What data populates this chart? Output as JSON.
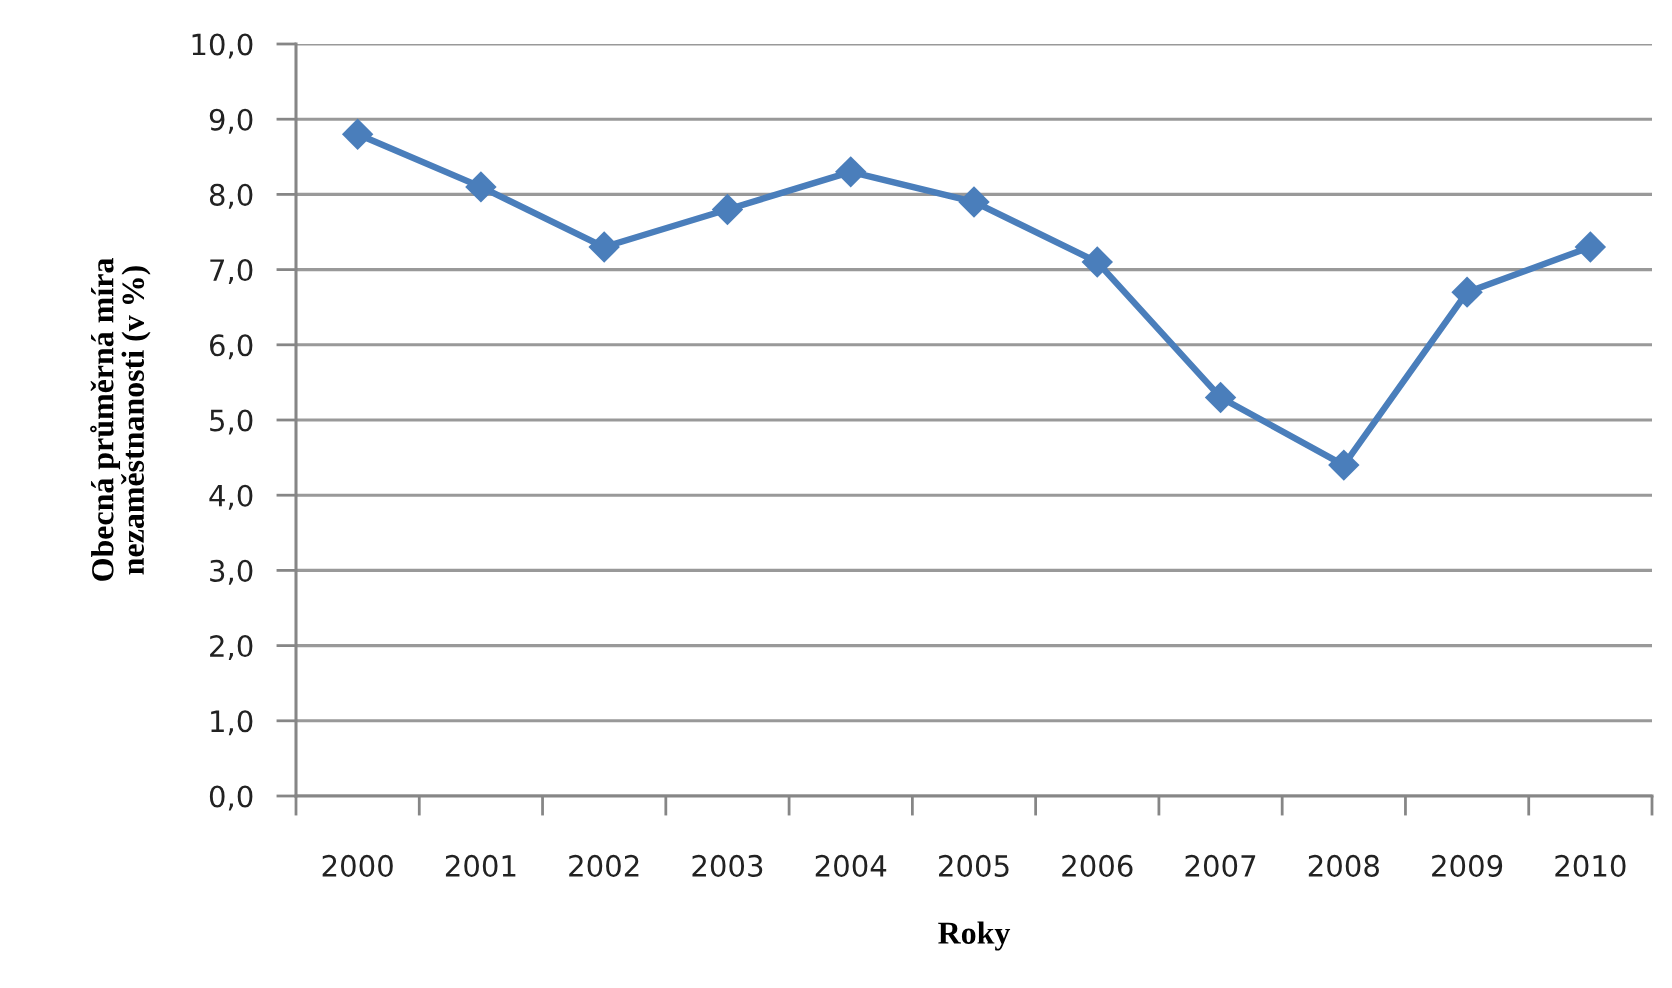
{
  "chart_data": {
    "type": "line",
    "xlabel": "Roky",
    "ylabel": "Obecná průměrná míra\nnezaměstnanosti (v %)",
    "categories": [
      "2000",
      "2001",
      "2002",
      "2003",
      "2004",
      "2005",
      "2006",
      "2007",
      "2008",
      "2009",
      "2010"
    ],
    "series": [
      {
        "color": "#4a7ebb",
        "values": [
          8.8,
          8.1,
          7.3,
          7.8,
          8.3,
          7.9,
          7.1,
          5.3,
          4.4,
          6.7,
          7.3
        ]
      }
    ],
    "ylim": [
      0,
      10
    ],
    "yticks": [
      {
        "value": 0,
        "label": "0,0"
      },
      {
        "value": 1,
        "label": "1,0"
      },
      {
        "value": 2,
        "label": "2,0"
      },
      {
        "value": 3,
        "label": "3,0"
      },
      {
        "value": 4,
        "label": "4,0"
      },
      {
        "value": 5,
        "label": "5,0"
      },
      {
        "value": 6,
        "label": "6,0"
      },
      {
        "value": 7,
        "label": "7,0"
      },
      {
        "value": 8,
        "label": "8,0"
      },
      {
        "value": 9,
        "label": "9,0"
      },
      {
        "value": 10,
        "label": "10,0"
      }
    ],
    "grid": "y",
    "marker": "diamond",
    "line_style": "solid"
  }
}
